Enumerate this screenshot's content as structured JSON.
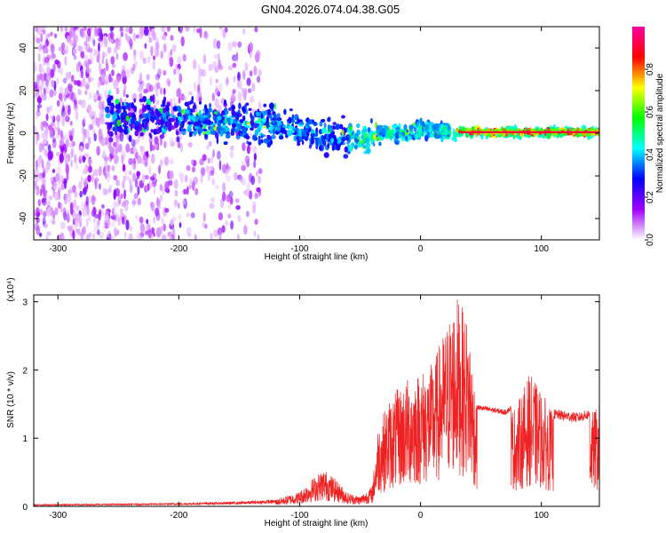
{
  "title": "GN04.2026.074.04.38.G05",
  "chart_data": [
    {
      "type": "heatmap",
      "xlabel": "Height of straight line (km)",
      "ylabel": "Frequency (Hz)",
      "xlim": [
        -320,
        148
      ],
      "ylim": [
        -50,
        50
      ],
      "xticks": [
        -300,
        -200,
        -100,
        0,
        100
      ],
      "yticks": [
        -40,
        -20,
        0,
        20,
        40
      ],
      "colorbar": {
        "label": "Normalized spectral amplitude",
        "range": [
          0,
          1
        ],
        "ticks": [
          0.0,
          0.2,
          0.4,
          0.6,
          0.8
        ],
        "tick_labels": [
          "0.0",
          "0.2",
          "0.4",
          "0.6",
          "0.8"
        ],
        "colors": [
          "#ffffff",
          "#a000ff",
          "#0000ff",
          "#00ffff",
          "#00ff00",
          "#ffff00",
          "#ff0000",
          "#ff00a0"
        ]
      },
      "band_center_hz": [
        {
          "x": -260,
          "f": 8
        },
        {
          "x": -200,
          "f": 6
        },
        {
          "x": -150,
          "f": 5
        },
        {
          "x": -100,
          "f": 2
        },
        {
          "x": -70,
          "f": -2
        },
        {
          "x": -50,
          "f": -3
        },
        {
          "x": -30,
          "f": 0
        },
        {
          "x": 0,
          "f": 1
        },
        {
          "x": 30,
          "f": 0.5
        },
        {
          "x": 148,
          "f": 0.5
        }
      ]
    },
    {
      "type": "line",
      "xlabel": "Height of straight line (km)",
      "ylabel": "SNR (10 * v/v)",
      "y_multiplier": "(x10⁴)",
      "xlim": [
        -320,
        148
      ],
      "ylim": [
        0,
        3.1
      ],
      "xticks": [
        -300,
        -200,
        -100,
        0,
        100
      ],
      "yticks": [
        0,
        1,
        2,
        3
      ],
      "color": "#ee2222",
      "envelope": [
        {
          "x": -320,
          "y": 0.03
        },
        {
          "x": -250,
          "y": 0.04
        },
        {
          "x": -200,
          "y": 0.05
        },
        {
          "x": -150,
          "y": 0.07
        },
        {
          "x": -120,
          "y": 0.1
        },
        {
          "x": -100,
          "y": 0.22
        },
        {
          "x": -90,
          "y": 0.4
        },
        {
          "x": -80,
          "y": 0.55
        },
        {
          "x": -70,
          "y": 0.4
        },
        {
          "x": -60,
          "y": 0.2
        },
        {
          "x": -50,
          "y": 0.15
        },
        {
          "x": -40,
          "y": 0.3
        },
        {
          "x": -35,
          "y": 1.2
        },
        {
          "x": -25,
          "y": 1.6
        },
        {
          "x": -10,
          "y": 1.9
        },
        {
          "x": 0,
          "y": 2.0
        },
        {
          "x": 10,
          "y": 2.1
        },
        {
          "x": 20,
          "y": 2.6
        },
        {
          "x": 30,
          "y": 3.1
        },
        {
          "x": 40,
          "y": 2.7
        },
        {
          "x": 47,
          "y": 1.45
        },
        {
          "x": 70,
          "y": 1.38
        },
        {
          "x": 80,
          "y": 1.5
        },
        {
          "x": 90,
          "y": 1.95
        },
        {
          "x": 100,
          "y": 1.7
        },
        {
          "x": 110,
          "y": 1.35
        },
        {
          "x": 130,
          "y": 1.3
        },
        {
          "x": 140,
          "y": 1.35
        },
        {
          "x": 148,
          "y": 1.5
        }
      ]
    }
  ]
}
